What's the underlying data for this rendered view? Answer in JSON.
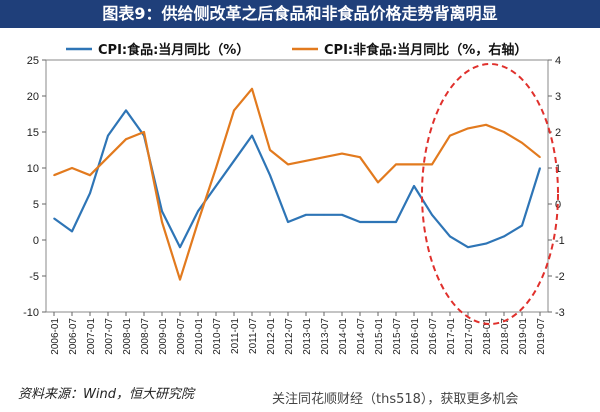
{
  "page": {
    "title": "图表9：供给侧改革之后食品和非食品价格走势背离明显",
    "source": "资料来源：Wind，恒大研究院",
    "watermark": "关注同花顺财经（ths518），获取更多机会"
  },
  "colors": {
    "food": "#2e75b6",
    "nonfood": "#e27a1e",
    "highlight": "#e0302c",
    "title_bg": "#1f3f7a"
  },
  "chart_data": {
    "type": "line",
    "x": [
      "2006-01",
      "2006-07",
      "2007-01",
      "2007-07",
      "2008-01",
      "2008-07",
      "2009-01",
      "2009-07",
      "2010-01",
      "2010-07",
      "2011-01",
      "2011-07",
      "2012-01",
      "2012-07",
      "2013-01",
      "2013-07",
      "2014-01",
      "2014-07",
      "2015-01",
      "2015-07",
      "2016-01",
      "2016-07",
      "2017-01",
      "2017-07",
      "2018-01",
      "2018-07",
      "2019-01",
      "2019-07"
    ],
    "x_ticks": [
      "2006-01",
      "2006-07",
      "2007-01",
      "2007-07",
      "2008-01",
      "2008-07",
      "2009-01",
      "2009-07",
      "2010-01",
      "2010-07",
      "2011-01",
      "2011-07",
      "2012-01",
      "2012-07",
      "2013-01",
      "2013-07",
      "2014-01",
      "2014-07",
      "2015-01",
      "2015-07",
      "2016-01",
      "2016-07",
      "2017-01",
      "2017-07",
      "2018-01",
      "2018-07",
      "2019-01",
      "2019-07"
    ],
    "y_left": {
      "min": -10,
      "max": 25,
      "ticks": [
        -10,
        -5,
        0,
        5,
        10,
        15,
        20,
        25
      ]
    },
    "y_right": {
      "min": -3,
      "max": 4,
      "ticks": [
        -3,
        -2,
        -1,
        0,
        1,
        2,
        3,
        4
      ]
    },
    "series": [
      {
        "name": "CPI:食品:当月同比（%）",
        "axis": "left",
        "values": [
          3.0,
          1.2,
          6.5,
          14.5,
          18.0,
          14.5,
          4.0,
          -1.0,
          4.0,
          7.5,
          11.0,
          14.5,
          9.0,
          2.5,
          3.5,
          3.5,
          3.5,
          2.5,
          2.5,
          2.5,
          7.5,
          3.5,
          0.5,
          -1.0,
          -0.5,
          0.5,
          2.0,
          10.0
        ]
      },
      {
        "name": "CPI:非食品:当月同比（%，右轴）",
        "axis": "right",
        "values": [
          0.8,
          1.0,
          0.8,
          1.3,
          1.8,
          2.0,
          -0.5,
          -2.1,
          -0.5,
          1.0,
          2.6,
          3.2,
          1.5,
          1.1,
          1.2,
          1.3,
          1.4,
          1.3,
          0.6,
          1.1,
          1.1,
          1.1,
          1.9,
          2.1,
          2.2,
          2.0,
          1.7,
          1.3
        ]
      }
    ],
    "legend": "top",
    "grid": false,
    "annotation": "red dashed ellipse highlighting 2016-07 to 2019-07 divergence"
  }
}
